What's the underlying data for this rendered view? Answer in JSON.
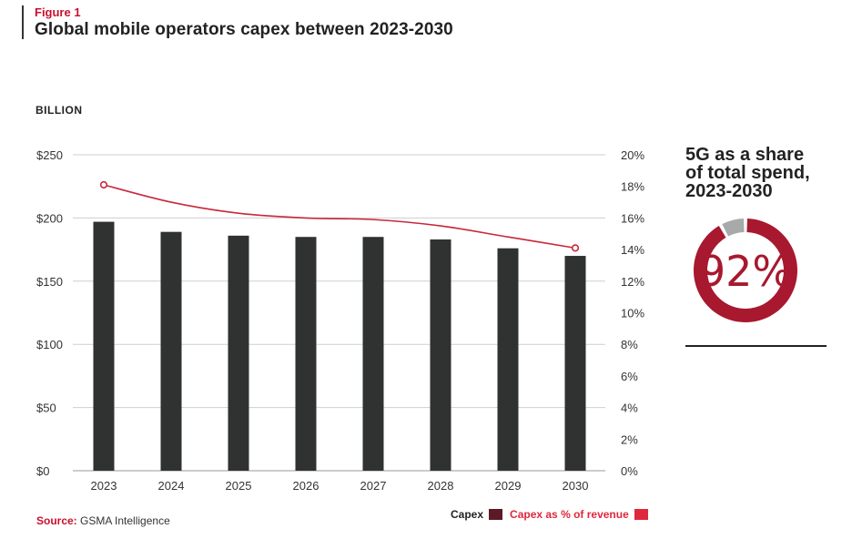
{
  "header": {
    "figure_label": "Figure 1",
    "title": "Global mobile operators capex between 2023-2030"
  },
  "chart_data": {
    "type": "bar",
    "title": "Global mobile operators capex between 2023-2030",
    "ylabel": "BILLION",
    "categories": [
      "2023",
      "2024",
      "2025",
      "2026",
      "2027",
      "2028",
      "2029",
      "2030"
    ],
    "ylim": [
      0,
      250
    ],
    "y2lim": [
      0,
      20
    ],
    "y_ticks": [
      "$0",
      "$50",
      "$100",
      "$150",
      "$200",
      "$250"
    ],
    "y2_ticks": [
      "0%",
      "2%",
      "4%",
      "6%",
      "8%",
      "10%",
      "12%",
      "14%",
      "16%",
      "18%",
      "20%"
    ],
    "grid": true,
    "series": [
      {
        "name": "Capex",
        "type": "bar",
        "axis": "left",
        "values": [
          197,
          189,
          186,
          185,
          185,
          183,
          176,
          170
        ]
      },
      {
        "name": "Capex as % of revenue",
        "type": "line",
        "axis": "right",
        "values": [
          18.1,
          17.0,
          16.3,
          16.0,
          15.9,
          15.5,
          14.8,
          14.1
        ]
      }
    ]
  },
  "legend": {
    "capex_label": "Capex",
    "capex_color": "#5c1a26",
    "pct_label": "Capex as % of revenue",
    "pct_color": "#e0283c"
  },
  "colors": {
    "bar": "#2f3230",
    "line": "#c8283a",
    "accent": "#c8102e"
  },
  "source": {
    "key": "Source:",
    "text": "GSMA Intelligence"
  },
  "side_panel": {
    "title_line1": "5G as a share",
    "title_line2": "of total spend,",
    "title_line3": "2023-2030",
    "share_value": 92,
    "share_label": "92%",
    "share_color": "#a8182e",
    "rest_color": "#a7a9ab"
  }
}
